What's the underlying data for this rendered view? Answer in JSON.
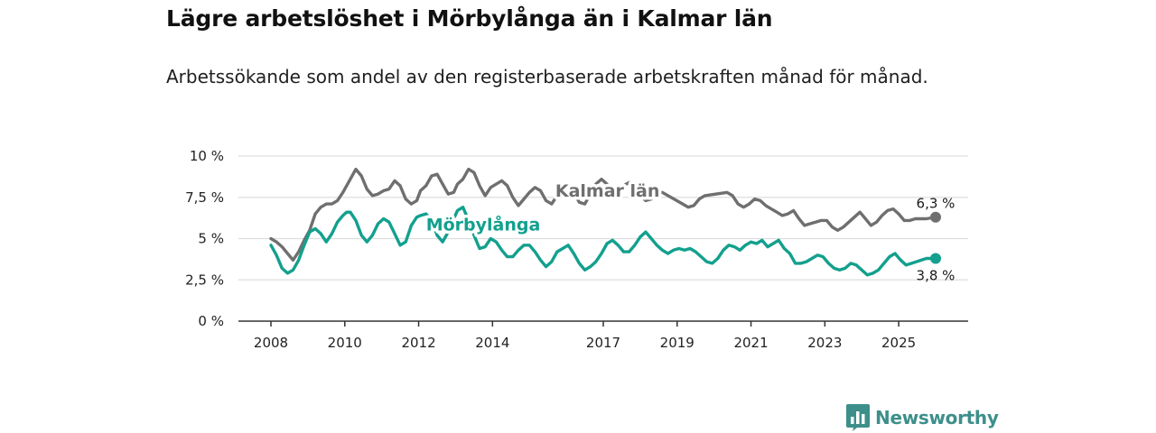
{
  "title": "Lägre arbetslöshet i Mörbylånga än i Kalmar län",
  "subtitle": "Arbetssökande som andel av den registerbaserade arbetskraften månad för månad.",
  "brand": "Newsworthy",
  "colors": {
    "kalmar": "#6f6f6f",
    "morbylanga": "#13a08e",
    "brand": "#3d8f8a",
    "grid": "#dedede",
    "axis": "#333333"
  },
  "chart_data": {
    "type": "line",
    "title": "Lägre arbetslöshet i Mörbylånga än i Kalmar län",
    "xlabel": "",
    "ylabel": "",
    "xlim": [
      2008,
      2026.8
    ],
    "ylim": [
      0,
      10
    ],
    "yticks": [
      0,
      2.5,
      5,
      7.5,
      10
    ],
    "ytick_labels": [
      "0 %",
      "2,5 %",
      "5 %",
      "7,5 %",
      "10 %"
    ],
    "xticks": [
      2008,
      2010,
      2012,
      2014,
      2017,
      2019,
      2021,
      2023,
      2025
    ],
    "xtick_labels": [
      "2008",
      "2010",
      "2012",
      "2014",
      "2017",
      "2019",
      "2021",
      "2023",
      "2025"
    ],
    "grid": true,
    "series": [
      {
        "name": "Kalmar län",
        "label": "Kalmar län",
        "end_label": "6,3 %",
        "x": [
          2008.0,
          2008.15,
          2008.3,
          2008.45,
          2008.6,
          2008.75,
          2008.9,
          2009.05,
          2009.2,
          2009.35,
          2009.5,
          2009.65,
          2009.8,
          2009.95,
          2010.05,
          2010.15,
          2010.3,
          2010.45,
          2010.6,
          2010.75,
          2010.9,
          2011.05,
          2011.2,
          2011.35,
          2011.5,
          2011.65,
          2011.8,
          2011.95,
          2012.05,
          2012.2,
          2012.35,
          2012.5,
          2012.65,
          2012.8,
          2012.95,
          2013.05,
          2013.2,
          2013.35,
          2013.5,
          2013.65,
          2013.8,
          2013.95,
          2014.1,
          2014.25,
          2014.4,
          2014.55,
          2014.7,
          2014.85,
          2015.0,
          2015.15,
          2015.3,
          2015.45,
          2015.6,
          2015.75,
          2015.9,
          2016.05,
          2016.2,
          2016.35,
          2016.5,
          2016.65,
          2016.8,
          2016.95,
          2017.1,
          2017.25,
          2017.4,
          2017.55,
          2017.7,
          2017.85,
          2018.0,
          2018.15,
          2018.3,
          2018.45,
          2018.6,
          2019.15,
          2019.3,
          2019.45,
          2019.6,
          2019.75,
          2020.35,
          2020.5,
          2020.65,
          2020.8,
          2020.95,
          2021.1,
          2021.25,
          2021.4,
          2021.55,
          2021.7,
          2021.85,
          2022.0,
          2022.15,
          2022.3,
          2022.45,
          2022.6,
          2022.75,
          2022.9,
          2023.05,
          2023.2,
          2023.35,
          2023.5,
          2023.65,
          2023.8,
          2023.95,
          2024.1,
          2024.25,
          2024.4,
          2024.55,
          2024.7,
          2024.85,
          2025.0,
          2025.15,
          2025.3,
          2025.45,
          2025.6,
          2025.75,
          2026.0
        ],
        "y": [
          5.0,
          4.8,
          4.5,
          4.1,
          3.7,
          4.2,
          4.9,
          5.5,
          6.5,
          6.9,
          7.1,
          7.1,
          7.3,
          7.8,
          8.2,
          8.6,
          9.2,
          8.8,
          8.0,
          7.6,
          7.7,
          7.9,
          8.0,
          8.5,
          8.2,
          7.4,
          7.1,
          7.3,
          7.9,
          8.2,
          8.8,
          8.9,
          8.3,
          7.7,
          7.8,
          8.3,
          8.6,
          9.2,
          9.0,
          8.2,
          7.6,
          8.1,
          8.3,
          8.5,
          8.2,
          7.5,
          7.0,
          7.4,
          7.8,
          8.1,
          7.9,
          7.3,
          7.1,
          7.6,
          7.8,
          8.1,
          7.8,
          7.2,
          7.1,
          7.7,
          8.3,
          8.6,
          8.3,
          7.7,
          7.8,
          8.2,
          8.4,
          8.2,
          7.6,
          7.3,
          7.4,
          7.8,
          7.8,
          7.1,
          6.9,
          7.0,
          7.4,
          7.6,
          7.8,
          7.6,
          7.1,
          6.9,
          7.1,
          7.4,
          7.3,
          7.0,
          6.8,
          6.6,
          6.4,
          6.5,
          6.7,
          6.2,
          5.8,
          5.9,
          6.0,
          6.1,
          6.1,
          5.7,
          5.5,
          5.7,
          6.0,
          6.3,
          6.6,
          6.2,
          5.8,
          6.0,
          6.4,
          6.7,
          6.8,
          6.5,
          6.1,
          6.1,
          6.2,
          6.2,
          6.2,
          6.3
        ],
        "color": "#6f6f6f"
      },
      {
        "name": "Mörbylånga",
        "label": "Mörbylånga",
        "end_label": "3,8 %",
        "x": [
          2008.0,
          2008.15,
          2008.3,
          2008.45,
          2008.6,
          2008.75,
          2008.9,
          2009.05,
          2009.2,
          2009.35,
          2009.5,
          2009.65,
          2009.8,
          2009.95,
          2010.05,
          2010.15,
          2010.3,
          2010.45,
          2010.6,
          2010.75,
          2010.9,
          2011.05,
          2011.2,
          2011.35,
          2011.5,
          2011.65,
          2011.8,
          2011.95,
          2012.05,
          2012.2,
          2012.35,
          2012.5,
          2012.65,
          2012.8,
          2012.95,
          2013.05,
          2013.2,
          2013.35,
          2013.5,
          2013.65,
          2013.8,
          2013.95,
          2014.1,
          2014.25,
          2014.4,
          2014.55,
          2014.7,
          2014.85,
          2015.0,
          2015.15,
          2015.3,
          2015.45,
          2015.6,
          2015.75,
          2015.9,
          2016.05,
          2016.2,
          2016.35,
          2016.5,
          2016.65,
          2016.8,
          2016.95,
          2017.1,
          2017.25,
          2017.4,
          2017.55,
          2017.7,
          2017.85,
          2018.0,
          2018.15,
          2018.3,
          2018.45,
          2018.6,
          2018.75,
          2018.9,
          2019.05,
          2019.2,
          2019.35,
          2019.5,
          2019.65,
          2019.8,
          2019.95,
          2020.1,
          2020.25,
          2020.4,
          2020.55,
          2020.7,
          2020.85,
          2021.0,
          2021.15,
          2021.3,
          2021.45,
          2021.6,
          2021.75,
          2021.9,
          2022.05,
          2022.2,
          2022.35,
          2022.5,
          2022.65,
          2022.8,
          2022.95,
          2023.1,
          2023.25,
          2023.4,
          2023.55,
          2023.7,
          2023.85,
          2024.0,
          2024.15,
          2024.3,
          2024.45,
          2024.6,
          2024.75,
          2024.9,
          2025.05,
          2025.2,
          2025.35,
          2025.75,
          2026.0
        ],
        "y": [
          4.6,
          4.0,
          3.2,
          2.9,
          3.1,
          3.7,
          4.6,
          5.4,
          5.6,
          5.3,
          4.8,
          5.3,
          6.0,
          6.4,
          6.6,
          6.6,
          6.1,
          5.2,
          4.8,
          5.2,
          5.9,
          6.2,
          6.0,
          5.3,
          4.6,
          4.8,
          5.8,
          6.3,
          6.4,
          6.5,
          6.1,
          5.2,
          4.8,
          5.4,
          6.2,
          6.7,
          6.9,
          6.1,
          5.2,
          4.4,
          4.5,
          5.0,
          4.8,
          4.3,
          3.9,
          3.9,
          4.3,
          4.6,
          4.6,
          4.2,
          3.7,
          3.3,
          3.6,
          4.2,
          4.4,
          4.6,
          4.1,
          3.5,
          3.1,
          3.3,
          3.6,
          4.1,
          4.7,
          4.9,
          4.6,
          4.2,
          4.2,
          4.6,
          5.1,
          5.4,
          5.0,
          4.6,
          4.3,
          4.1,
          4.3,
          4.4,
          4.3,
          4.4,
          4.2,
          3.9,
          3.6,
          3.5,
          3.8,
          4.3,
          4.6,
          4.5,
          4.3,
          4.6,
          4.8,
          4.7,
          4.9,
          4.5,
          4.7,
          4.9,
          4.4,
          4.1,
          3.5,
          3.5,
          3.6,
          3.8,
          4.0,
          3.9,
          3.5,
          3.2,
          3.1,
          3.2,
          3.5,
          3.4,
          3.1,
          2.8,
          2.9,
          3.1,
          3.5,
          3.9,
          4.1,
          3.7,
          3.4,
          3.5,
          3.8,
          3.8
        ],
        "color": "#13a08e"
      }
    ]
  }
}
